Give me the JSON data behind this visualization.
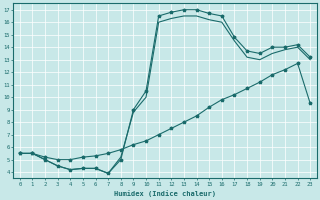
{
  "xlabel": "Humidex (Indice chaleur)",
  "bg_color": "#c8e8e8",
  "line_color": "#1a6b6b",
  "grid_color": "#ffffff",
  "xlim": [
    -0.5,
    23.5
  ],
  "ylim": [
    3.5,
    17.5
  ],
  "xticks": [
    0,
    1,
    2,
    3,
    4,
    5,
    6,
    7,
    8,
    9,
    10,
    11,
    12,
    13,
    14,
    15,
    16,
    17,
    18,
    19,
    20,
    21,
    22,
    23
  ],
  "yticks": [
    4,
    5,
    6,
    7,
    8,
    9,
    10,
    11,
    12,
    13,
    14,
    15,
    16,
    17
  ],
  "line1_x": [
    0,
    1,
    2,
    3,
    4,
    5,
    6,
    7,
    8,
    9,
    10,
    11,
    12,
    13,
    14,
    15,
    16,
    17,
    18,
    19,
    20,
    21,
    22,
    23
  ],
  "line1_y": [
    5.5,
    5.5,
    5.0,
    4.5,
    4.2,
    4.3,
    4.3,
    3.9,
    5.0,
    9.0,
    10.5,
    16.5,
    16.8,
    17.0,
    17.0,
    16.7,
    16.5,
    14.8,
    13.7,
    13.5,
    14.0,
    14.0,
    14.2,
    13.2
  ],
  "line2_x": [
    0,
    1,
    2,
    3,
    4,
    5,
    6,
    7,
    8,
    9,
    10,
    11,
    12,
    13,
    14,
    15,
    16,
    17,
    18,
    19,
    20,
    21,
    22,
    23
  ],
  "line2_y": [
    5.5,
    5.5,
    5.0,
    4.5,
    4.2,
    4.3,
    4.3,
    3.9,
    5.2,
    8.8,
    10.0,
    16.0,
    16.3,
    16.5,
    16.5,
    16.2,
    16.0,
    14.5,
    13.2,
    13.0,
    13.5,
    13.8,
    14.0,
    13.0
  ],
  "line3_x": [
    0,
    1,
    2,
    3,
    4,
    5,
    6,
    7,
    8,
    9,
    10,
    11,
    12,
    13,
    14,
    15,
    16,
    17,
    18,
    19,
    20,
    21,
    22,
    23
  ],
  "line3_y": [
    5.5,
    5.5,
    5.2,
    5.0,
    5.0,
    5.2,
    5.3,
    5.5,
    5.8,
    6.2,
    6.5,
    7.0,
    7.5,
    8.0,
    8.5,
    9.2,
    9.8,
    10.2,
    10.7,
    11.2,
    11.8,
    12.2,
    12.7,
    9.5
  ]
}
